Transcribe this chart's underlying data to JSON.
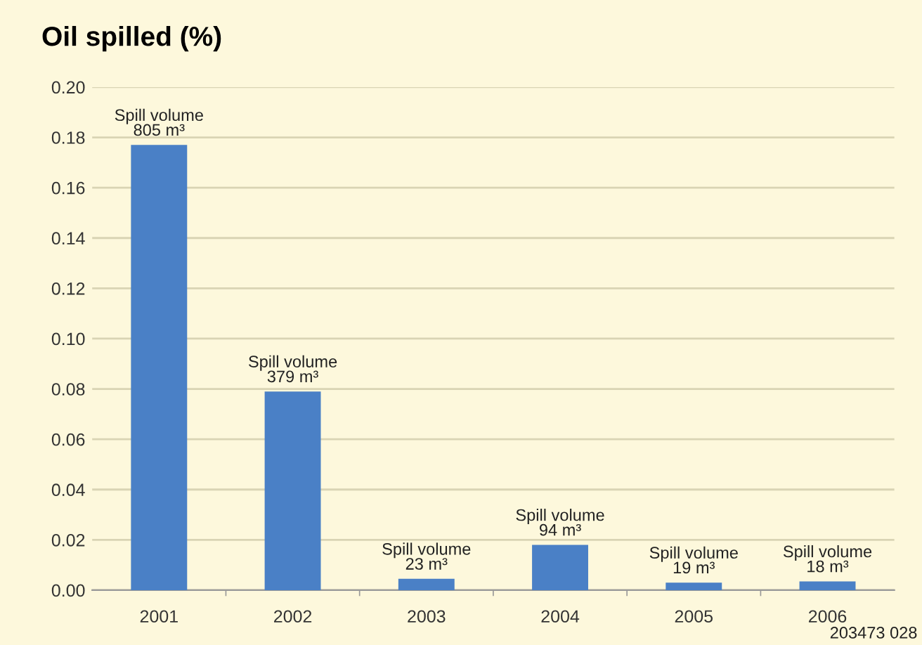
{
  "chart_data": {
    "type": "bar",
    "title": "Oil spilled (%)",
    "categories": [
      "2001",
      "2002",
      "2003",
      "2004",
      "2005",
      "2006"
    ],
    "values": [
      0.177,
      0.079,
      0.0045,
      0.018,
      0.003,
      0.0035
    ],
    "color": "#4a80c6",
    "ylim": [
      0,
      0.2
    ],
    "yticks": [
      {
        "value": 0,
        "label": "0.00"
      },
      {
        "value": 0.02,
        "label": "0.02"
      },
      {
        "value": 0.04,
        "label": "0.04"
      },
      {
        "value": 0.06,
        "label": "0.06"
      },
      {
        "value": 0.08,
        "label": "0.08"
      },
      {
        "value": 0.1,
        "label": "0.10"
      },
      {
        "value": 0.12,
        "label": "0.12"
      },
      {
        "value": 0.14,
        "label": "0.14"
      },
      {
        "value": 0.16,
        "label": "0.16"
      },
      {
        "value": 0.18,
        "label": "0.18"
      },
      {
        "value": 0.2,
        "label": "0.20"
      }
    ],
    "grid": "y",
    "annotations": [
      {
        "text": "Spill volume\n805 m³",
        "x": "2001",
        "y": 0.177
      },
      {
        "text": "Spill volume\n379 m³",
        "x": "2002",
        "y": 0.079
      },
      {
        "text": "Spill volume\n23 m³",
        "x": "2003",
        "y": 0.0045
      },
      {
        "text": "Spill volume\n94 m³",
        "x": "2004",
        "y": 0.018
      },
      {
        "text": "Spill volume\n19 m³",
        "x": "2005",
        "y": 0.003
      },
      {
        "text": "Spill volume\n18 m³",
        "x": "2006",
        "y": 0.0035
      },
      "203473 028"
    ]
  }
}
